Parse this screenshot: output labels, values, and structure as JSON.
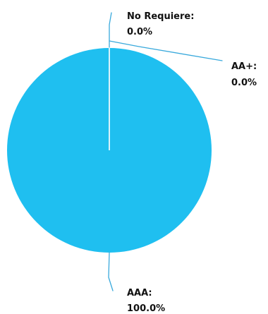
{
  "chart_data": {
    "type": "pie",
    "slices": [
      {
        "name": "No Requiere",
        "value": 0.0,
        "label": "No Requiere:",
        "percent": "0.0%"
      },
      {
        "name": "AA+",
        "value": 0.0,
        "label": "AA+:",
        "percent": "0.0%"
      },
      {
        "name": "AAA",
        "value": 100.0,
        "label": "AAA:",
        "percent": "100.0%"
      }
    ],
    "colors": {
      "pie": "#1fbff0",
      "leader": "#39a9dc",
      "separator": "#d9f2fb"
    }
  }
}
